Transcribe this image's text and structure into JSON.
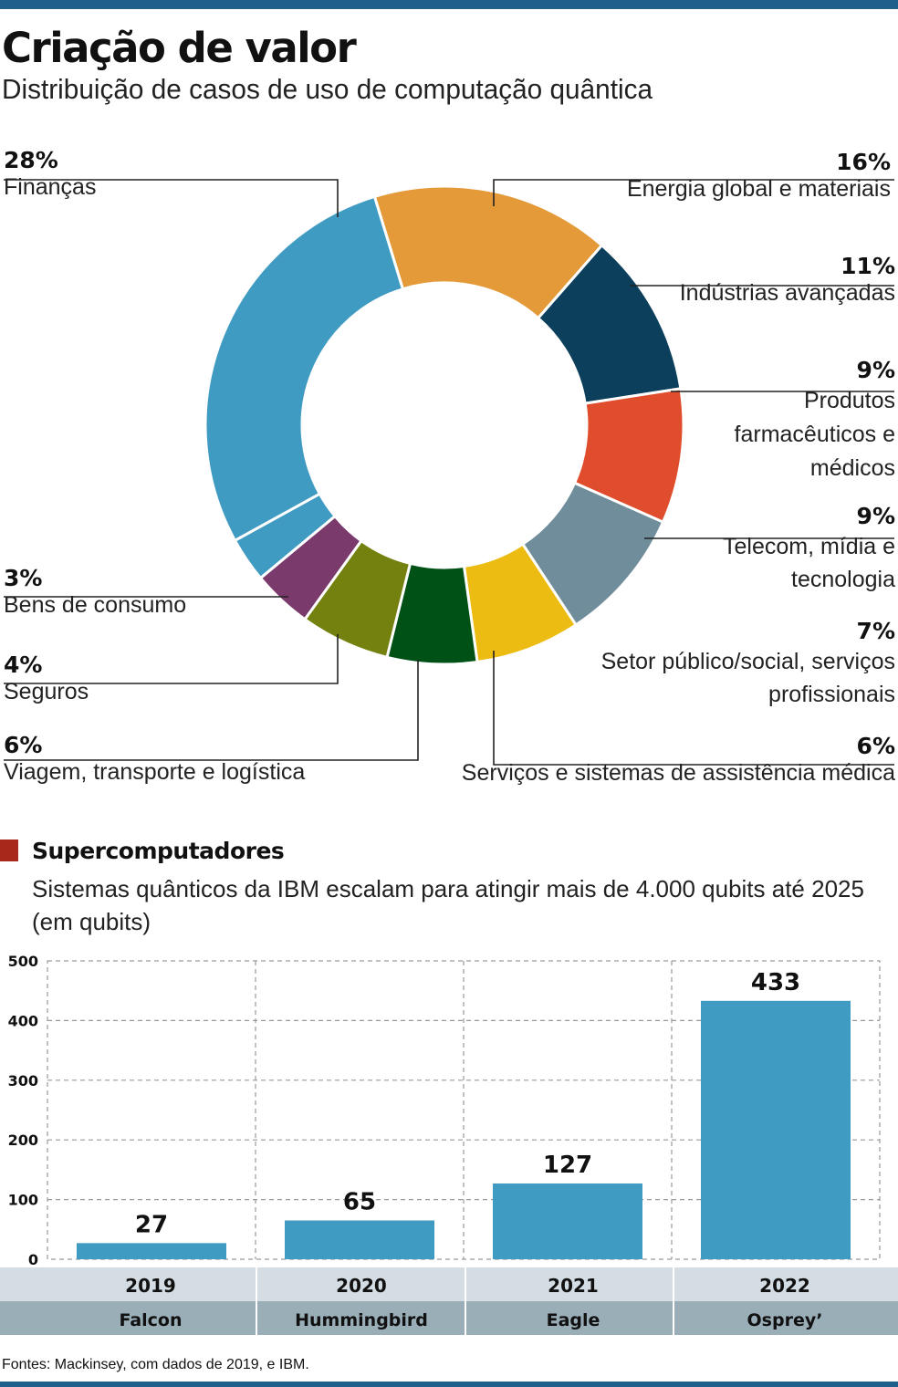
{
  "title": "Criação de valor",
  "subtitle": "Distribuição de casos de uso de computação quântica",
  "chart_data": [
    {
      "type": "pie",
      "variant": "donut",
      "slices": [
        {
          "label": "Energia global e materiais",
          "pct_label": "16%",
          "value": 16,
          "color": "#e49a38"
        },
        {
          "label": "Indústrias avançadas",
          "pct_label": "11%",
          "value": 11,
          "color": "#0b3f5c"
        },
        {
          "label": "Produtos farmacêuticos e médicos",
          "pct_label": "9%",
          "value": 9,
          "color": "#df4d2c"
        },
        {
          "label": "Telecom, mídia e tecnologia",
          "pct_label": "9%",
          "value": 9,
          "color": "#6f8d9a"
        },
        {
          "label": "Setor público/social, serviços profissionais",
          "pct_label": "7%",
          "value": 7,
          "color": "#ecbc12"
        },
        {
          "label": "Serviços e sistemas de assistência médica",
          "pct_label": "6%",
          "value": 6,
          "color": "#005116"
        },
        {
          "label": "Viagem, transporte e logística",
          "pct_label": "6%",
          "value": 6,
          "color": "#75810f"
        },
        {
          "label": "Seguros",
          "pct_label": "4%",
          "value": 4,
          "color": "#7a3a6c"
        },
        {
          "label": "Bens de consumo",
          "pct_label": "3%",
          "value": 3,
          "color": "#3f9bc2"
        },
        {
          "label": "Finanças",
          "pct_label": "28%",
          "value": 28,
          "color": "#3f9bc2"
        }
      ]
    },
    {
      "type": "bar",
      "title": "Supercomputadores",
      "subtitle": "Sistemas quânticos da IBM escalam para atingir mais de 4.000 qubits até 2025 (em qubits)",
      "categories": [
        "2019",
        "2020",
        "2021",
        "2022"
      ],
      "processors": [
        "Falcon",
        "Hummingbird",
        "Eagle",
        "Osprey’"
      ],
      "values": [
        27,
        65,
        127,
        433
      ],
      "ylim": [
        0,
        500
      ],
      "yticks": [
        0,
        100,
        200,
        300,
        400,
        500
      ],
      "grid": true,
      "bar_color": "#3f9bc2"
    }
  ],
  "source": "Fontes: Mackinsey, com dados de 2019, e IBM."
}
